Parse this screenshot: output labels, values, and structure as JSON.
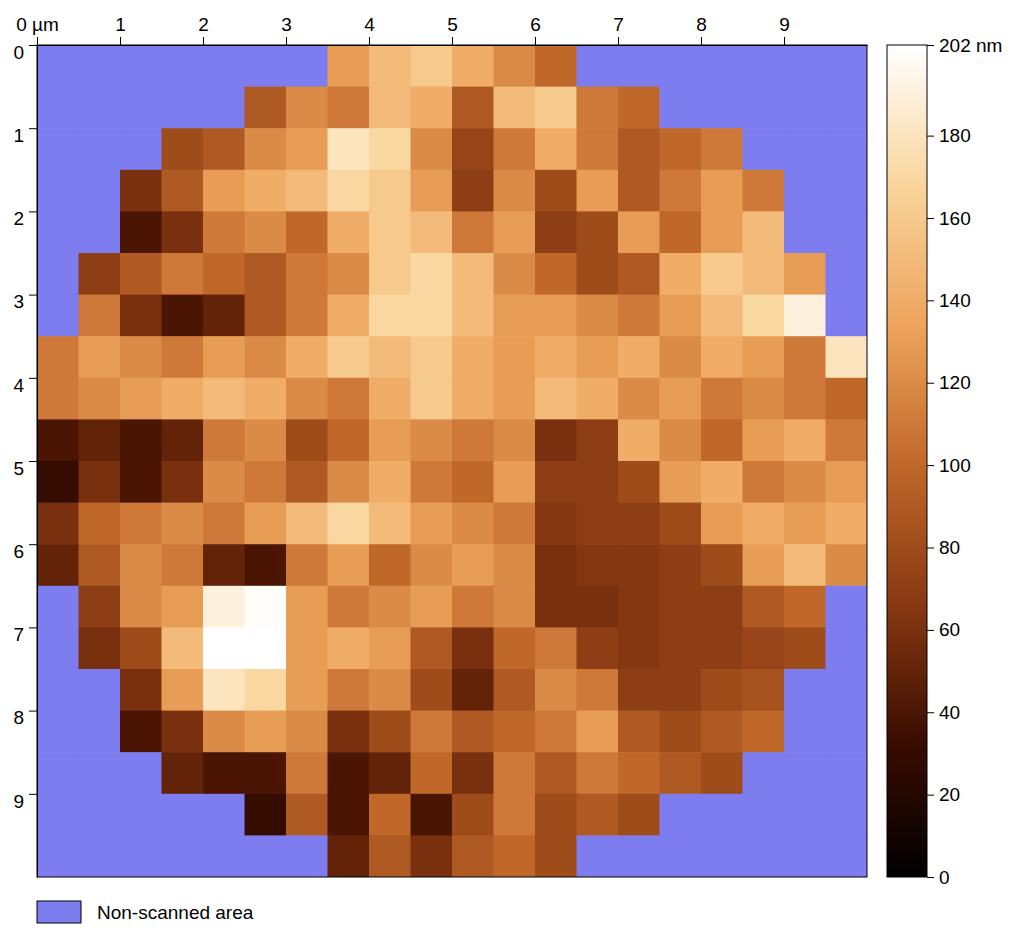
{
  "chart_data": {
    "type": "heatmap",
    "xlim": [
      0,
      10
    ],
    "ylim": [
      10,
      0
    ],
    "xticks": [
      {
        "value": 0,
        "label": "0 µm"
      },
      1,
      2,
      3,
      4,
      5,
      6,
      7,
      8,
      9
    ],
    "yticks": [
      0,
      1,
      2,
      3,
      4,
      5,
      6,
      7,
      8,
      9
    ],
    "colorbar": {
      "range": [
        0,
        202
      ],
      "ticks": [
        0,
        20,
        40,
        60,
        80,
        100,
        120,
        140,
        160,
        180,
        {
          "value": 202,
          "label": "202 nm"
        }
      ]
    },
    "missing": {
      "label": "Non-scanned area",
      "color": "#7d7df0"
    },
    "legend": "bottom-left",
    "cells": [
      [
        null,
        null,
        null,
        null,
        null,
        null,
        null,
        130,
        150,
        160,
        140,
        120,
        100,
        null,
        null,
        null,
        null,
        null,
        null,
        null
      ],
      [
        null,
        null,
        null,
        null,
        null,
        90,
        120,
        110,
        150,
        140,
        90,
        150,
        160,
        110,
        100,
        null,
        null,
        null,
        null,
        null
      ],
      [
        null,
        null,
        null,
        80,
        90,
        120,
        130,
        180,
        170,
        120,
        75,
        110,
        140,
        110,
        90,
        100,
        110,
        null,
        null,
        null
      ],
      [
        null,
        null,
        60,
        90,
        130,
        140,
        150,
        170,
        160,
        130,
        70,
        120,
        80,
        130,
        90,
        110,
        130,
        110,
        null,
        null
      ],
      [
        null,
        null,
        40,
        60,
        110,
        120,
        100,
        140,
        160,
        150,
        110,
        130,
        70,
        80,
        130,
        100,
        130,
        150,
        null,
        null
      ],
      [
        null,
        70,
        90,
        110,
        100,
        90,
        110,
        120,
        160,
        170,
        150,
        120,
        100,
        80,
        90,
        140,
        160,
        150,
        130,
        null
      ],
      [
        null,
        110,
        60,
        40,
        50,
        90,
        110,
        140,
        170,
        170,
        150,
        130,
        130,
        120,
        110,
        130,
        150,
        170,
        190,
        null
      ],
      [
        110,
        130,
        120,
        110,
        130,
        120,
        140,
        160,
        150,
        160,
        140,
        130,
        140,
        130,
        140,
        120,
        140,
        130,
        110,
        180
      ],
      [
        110,
        120,
        130,
        140,
        150,
        140,
        120,
        110,
        140,
        160,
        140,
        130,
        150,
        140,
        120,
        130,
        110,
        120,
        110,
        100
      ],
      [
        40,
        50,
        40,
        50,
        110,
        120,
        80,
        100,
        130,
        120,
        110,
        120,
        60,
        70,
        140,
        120,
        100,
        130,
        140,
        110
      ],
      [
        30,
        60,
        40,
        60,
        120,
        110,
        90,
        120,
        140,
        110,
        100,
        130,
        70,
        70,
        80,
        130,
        140,
        110,
        120,
        130
      ],
      [
        60,
        100,
        110,
        120,
        110,
        130,
        150,
        170,
        150,
        130,
        120,
        110,
        65,
        70,
        70,
        80,
        130,
        140,
        130,
        140
      ],
      [
        50,
        90,
        120,
        110,
        50,
        40,
        110,
        130,
        100,
        120,
        130,
        120,
        60,
        65,
        65,
        70,
        80,
        130,
        150,
        120
      ],
      [
        null,
        70,
        120,
        130,
        190,
        200,
        130,
        110,
        120,
        130,
        110,
        120,
        60,
        60,
        65,
        70,
        70,
        90,
        100,
        null
      ],
      [
        null,
        60,
        80,
        150,
        202,
        202,
        130,
        140,
        130,
        90,
        60,
        100,
        110,
        70,
        65,
        70,
        70,
        75,
        80,
        null
      ],
      [
        null,
        null,
        60,
        130,
        180,
        170,
        130,
        110,
        120,
        80,
        50,
        90,
        120,
        110,
        70,
        70,
        80,
        85,
        null,
        null
      ],
      [
        null,
        null,
        40,
        60,
        120,
        130,
        120,
        60,
        80,
        110,
        90,
        100,
        110,
        130,
        90,
        80,
        90,
        100,
        null,
        null
      ],
      [
        null,
        null,
        null,
        50,
        40,
        40,
        110,
        40,
        50,
        100,
        60,
        110,
        90,
        110,
        100,
        90,
        80,
        null,
        null,
        null
      ],
      [
        null,
        null,
        null,
        null,
        null,
        30,
        90,
        40,
        100,
        40,
        80,
        110,
        80,
        90,
        80,
        null,
        null,
        null,
        null,
        null
      ],
      [
        null,
        null,
        null,
        null,
        null,
        null,
        null,
        50,
        90,
        60,
        90,
        100,
        80,
        null,
        null,
        null,
        null,
        null,
        null,
        null
      ]
    ]
  }
}
